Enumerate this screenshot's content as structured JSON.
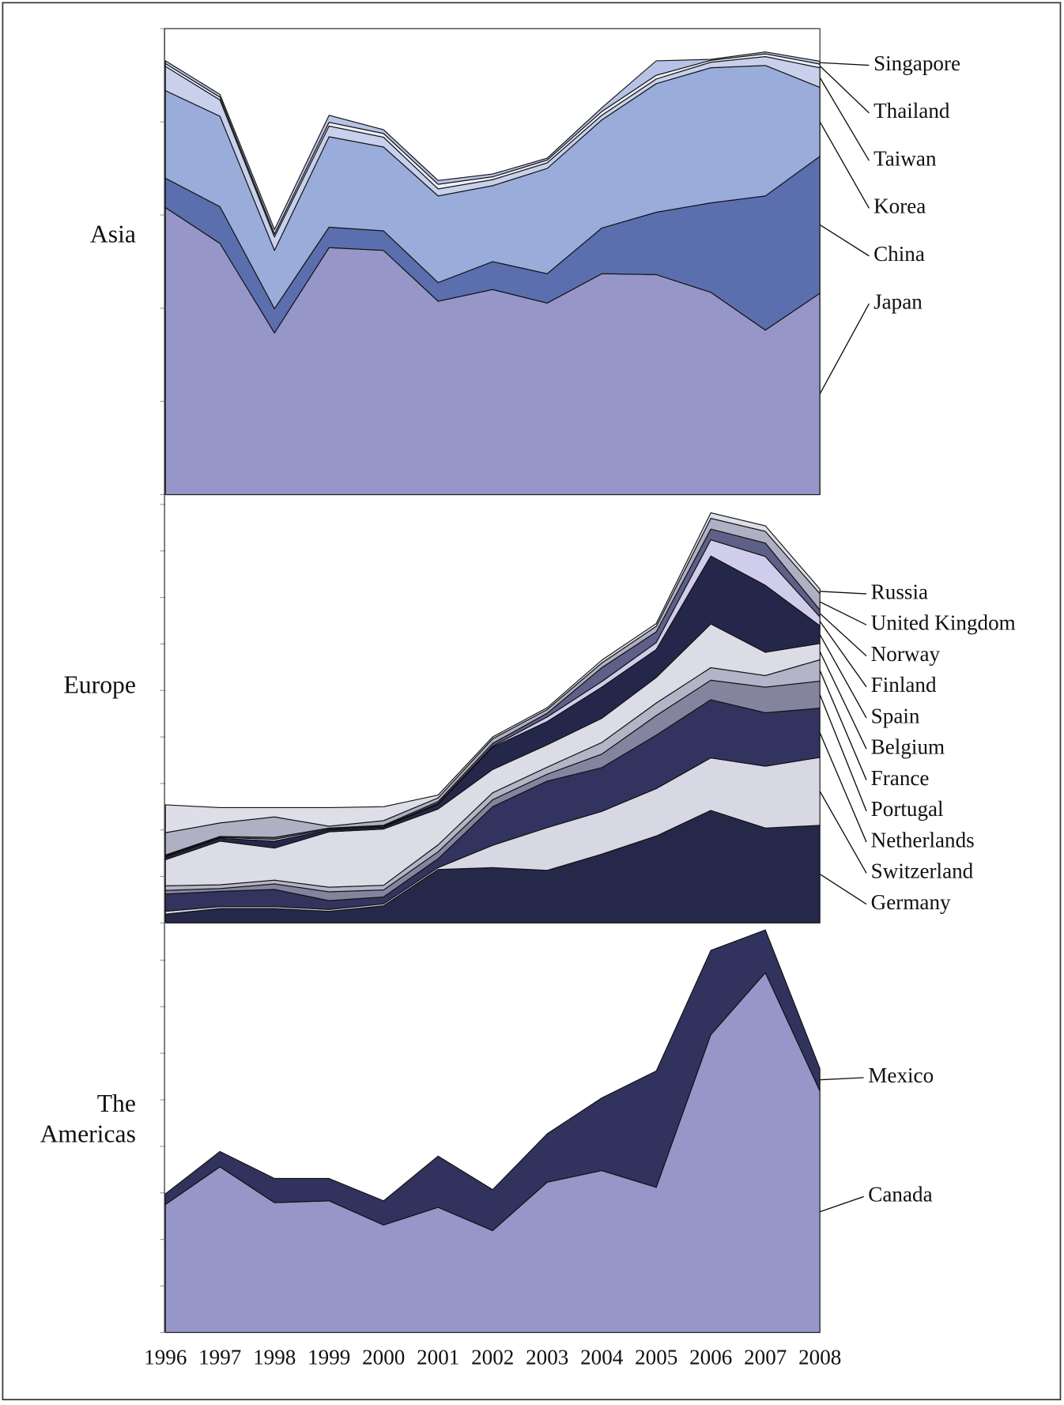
{
  "chart_data": [
    {
      "type": "stacked-area",
      "title": "Asia",
      "ylim": [
        0,
        10
      ],
      "yticks": [
        0,
        2,
        4,
        6,
        8,
        10
      ],
      "series": [
        {
          "name": "Japan",
          "color": "#9696c8",
          "values": [
            6.16,
            5.39,
            3.47,
            5.3,
            5.24,
            4.15,
            4.4,
            4.11,
            4.74,
            4.72,
            4.34,
            3.53,
            4.32
          ]
        },
        {
          "name": "China",
          "color": "#5b6eae",
          "values": [
            0.63,
            0.79,
            0.52,
            0.44,
            0.42,
            0.4,
            0.6,
            0.63,
            0.98,
            1.34,
            1.92,
            2.88,
            2.94
          ]
        },
        {
          "name": "Korea",
          "color": "#9aacda",
          "values": [
            1.88,
            1.94,
            1.25,
            1.94,
            1.8,
            1.86,
            1.63,
            2.26,
            2.32,
            2.76,
            2.9,
            2.8,
            1.48
          ]
        },
        {
          "name": "Taiwan",
          "color": "#c8d0ec",
          "values": [
            0.52,
            0.35,
            0.29,
            0.23,
            0.21,
            0.15,
            0.13,
            0.12,
            0.1,
            0.1,
            0.12,
            0.19,
            0.42
          ]
        },
        {
          "name": "Thailand",
          "color": "#eef0fa",
          "values": [
            0.06,
            0.06,
            0.06,
            0.08,
            0.08,
            0.1,
            0.06,
            0.06,
            0.08,
            0.08,
            0.04,
            0.06,
            0.08
          ]
        },
        {
          "name": "Singapore",
          "color": "#b8c2e6",
          "values": [
            0.06,
            0.06,
            0.1,
            0.15,
            0.08,
            0.08,
            0.06,
            0.04,
            0.08,
            0.31,
            0.02,
            0.04,
            0.06
          ]
        }
      ]
    },
    {
      "type": "stacked-area",
      "title": "Europe",
      "ylim": [
        0,
        9.2
      ],
      "yticks": [
        0,
        1,
        2,
        3,
        4,
        5,
        6,
        7,
        8,
        9
      ],
      "series": [
        {
          "name": "Germany",
          "color": "#26284a",
          "values": [
            0.19,
            0.31,
            0.31,
            0.25,
            0.37,
            1.15,
            1.19,
            1.13,
            1.48,
            1.87,
            2.42,
            2.04,
            2.1
          ]
        },
        {
          "name": "Switzerland",
          "color": "#d8d8e4",
          "values": [
            0.06,
            0.04,
            0.04,
            0.04,
            0.04,
            0.04,
            0.48,
            0.92,
            0.92,
            1.02,
            1.13,
            1.33,
            1.46
          ]
        },
        {
          "name": "Netherlands",
          "color": "#33335f",
          "values": [
            0.37,
            0.33,
            0.37,
            0.19,
            0.15,
            0.19,
            0.83,
            1.0,
            0.94,
            1.15,
            1.25,
            1.15,
            1.06
          ]
        },
        {
          "name": "Portugal",
          "color": "#84849e",
          "values": [
            0.08,
            0.06,
            0.12,
            0.19,
            0.15,
            0.15,
            0.15,
            0.15,
            0.29,
            0.42,
            0.42,
            0.55,
            0.58
          ]
        },
        {
          "name": "France",
          "color": "#b4b4c8",
          "values": [
            0.1,
            0.08,
            0.08,
            0.1,
            0.1,
            0.15,
            0.15,
            0.15,
            0.25,
            0.27,
            0.27,
            0.25,
            0.46
          ]
        },
        {
          "name": "Belgium",
          "color": "#dcdce6",
          "values": [
            0.56,
            0.94,
            0.69,
            1.19,
            1.21,
            0.77,
            0.5,
            0.48,
            0.52,
            0.55,
            0.94,
            0.5,
            0.35
          ]
        },
        {
          "name": "Spain",
          "color": "#25274a",
          "values": [
            0.06,
            0.06,
            0.15,
            0.04,
            0.04,
            0.1,
            0.48,
            0.5,
            0.67,
            0.6,
            1.46,
            1.44,
            0.38
          ]
        },
        {
          "name": "Finland",
          "color": "#d0cceb",
          "values": [
            0.02,
            0.02,
            0.04,
            0.02,
            0.02,
            0.02,
            0.02,
            0.1,
            0.12,
            0.15,
            0.35,
            0.62,
            0.19
          ]
        },
        {
          "name": "Norway",
          "color": "#5e6088",
          "values": [
            0.02,
            0.02,
            0.04,
            0.02,
            0.02,
            0.04,
            0.06,
            0.08,
            0.3,
            0.23,
            0.23,
            0.29,
            0.15
          ]
        },
        {
          "name": "United Kingdom",
          "color": "#b0b0c4",
          "values": [
            0.48,
            0.29,
            0.44,
            0.04,
            0.1,
            0.08,
            0.1,
            0.08,
            0.1,
            0.12,
            0.23,
            0.25,
            0.35
          ]
        },
        {
          "name": "Russia",
          "color": "#dedee8",
          "values": [
            0.6,
            0.33,
            0.2,
            0.4,
            0.3,
            0.06,
            0.04,
            0.04,
            0.06,
            0.06,
            0.12,
            0.12,
            0.1
          ]
        }
      ]
    },
    {
      "type": "stacked-area",
      "title": "The Americas",
      "ylim": [
        0,
        8.8
      ],
      "yticks": [
        0,
        1,
        2,
        3,
        4,
        5,
        6,
        7,
        8
      ],
      "categories": [
        "1996",
        "1997",
        "1998",
        "1999",
        "2000",
        "2001",
        "2002",
        "2003",
        "2004",
        "2005",
        "2006",
        "2007",
        "2008"
      ],
      "series": [
        {
          "name": "Canada",
          "color": "#9696c8",
          "values": [
            2.75,
            3.56,
            2.79,
            2.83,
            2.31,
            2.69,
            2.19,
            3.23,
            3.48,
            3.12,
            6.4,
            7.73,
            5.19
          ]
        },
        {
          "name": "Mexico",
          "color": "#32325e",
          "values": [
            0.23,
            0.33,
            0.52,
            0.48,
            0.52,
            1.1,
            0.88,
            1.04,
            1.56,
            2.5,
            1.81,
            0.92,
            0.48
          ]
        }
      ]
    }
  ]
}
